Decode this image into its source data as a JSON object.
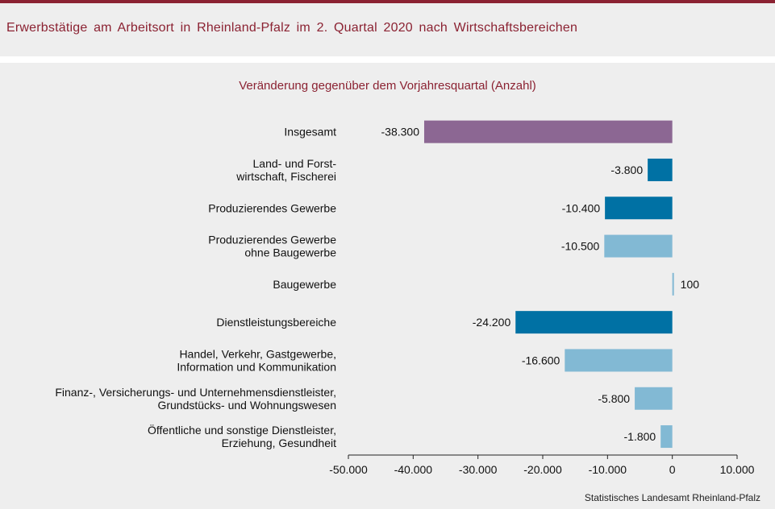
{
  "title": "Erwerbstätige  am  Arbeitsort  in  Rheinland-Pfalz  im  2.  Quartal  2020  nach  Wirtschaftsbereichen",
  "subtitle": "Veränderung  gegenüber  dem  Vorjahresquartal  (Anzahl)",
  "source": "Statistisches Landesamt  Rheinland-Pfalz",
  "colors": {
    "total": "#8c6793",
    "main_sector": "#0071a4",
    "sub_sector": "#82b9d4",
    "accent": "#8b2232"
  },
  "chart_data": {
    "type": "bar",
    "orientation": "horizontal",
    "categories": [
      [
        "Insgesamt"
      ],
      [
        "Land- und Forst-",
        "wirtschaft, Fischerei"
      ],
      [
        "Produzierendes Gewerbe"
      ],
      [
        "Produzierendes Gewerbe",
        "ohne Baugewerbe"
      ],
      [
        "Baugewerbe"
      ],
      [
        "Dienstleistungsbereiche"
      ],
      [
        "Handel, Verkehr, Gastgewerbe,",
        "Information und Kommunikation"
      ],
      [
        "Finanz-, Versicherungs- und Unternehmensdienstleister,",
        "Grundstücks- und Wohnungswesen"
      ],
      [
        "Öffentliche und sonstige Dienstleister,",
        "Erziehung, Gesundheit"
      ]
    ],
    "values": [
      -38300,
      -3800,
      -10400,
      -10500,
      100,
      -24200,
      -16600,
      -5800,
      -1800
    ],
    "value_labels": [
      "-38.300",
      "-3.800",
      "-10.400",
      "-10.500",
      "100",
      "-24.200",
      "-16.600",
      "-5.800",
      "-1.800"
    ],
    "bar_kind": [
      "total",
      "main_sector",
      "main_sector",
      "sub_sector",
      "sub_sector",
      "main_sector",
      "sub_sector",
      "sub_sector",
      "sub_sector"
    ],
    "xlim": [
      -50000,
      10000
    ],
    "xticks": [
      -50000,
      -40000,
      -30000,
      -20000,
      -10000,
      0,
      10000
    ],
    "xtick_labels": [
      "-50.000",
      "-40.000",
      "-30.000",
      "-20.000",
      "-10.000",
      "0",
      "10.000"
    ],
    "grid": false,
    "legend": "none"
  }
}
